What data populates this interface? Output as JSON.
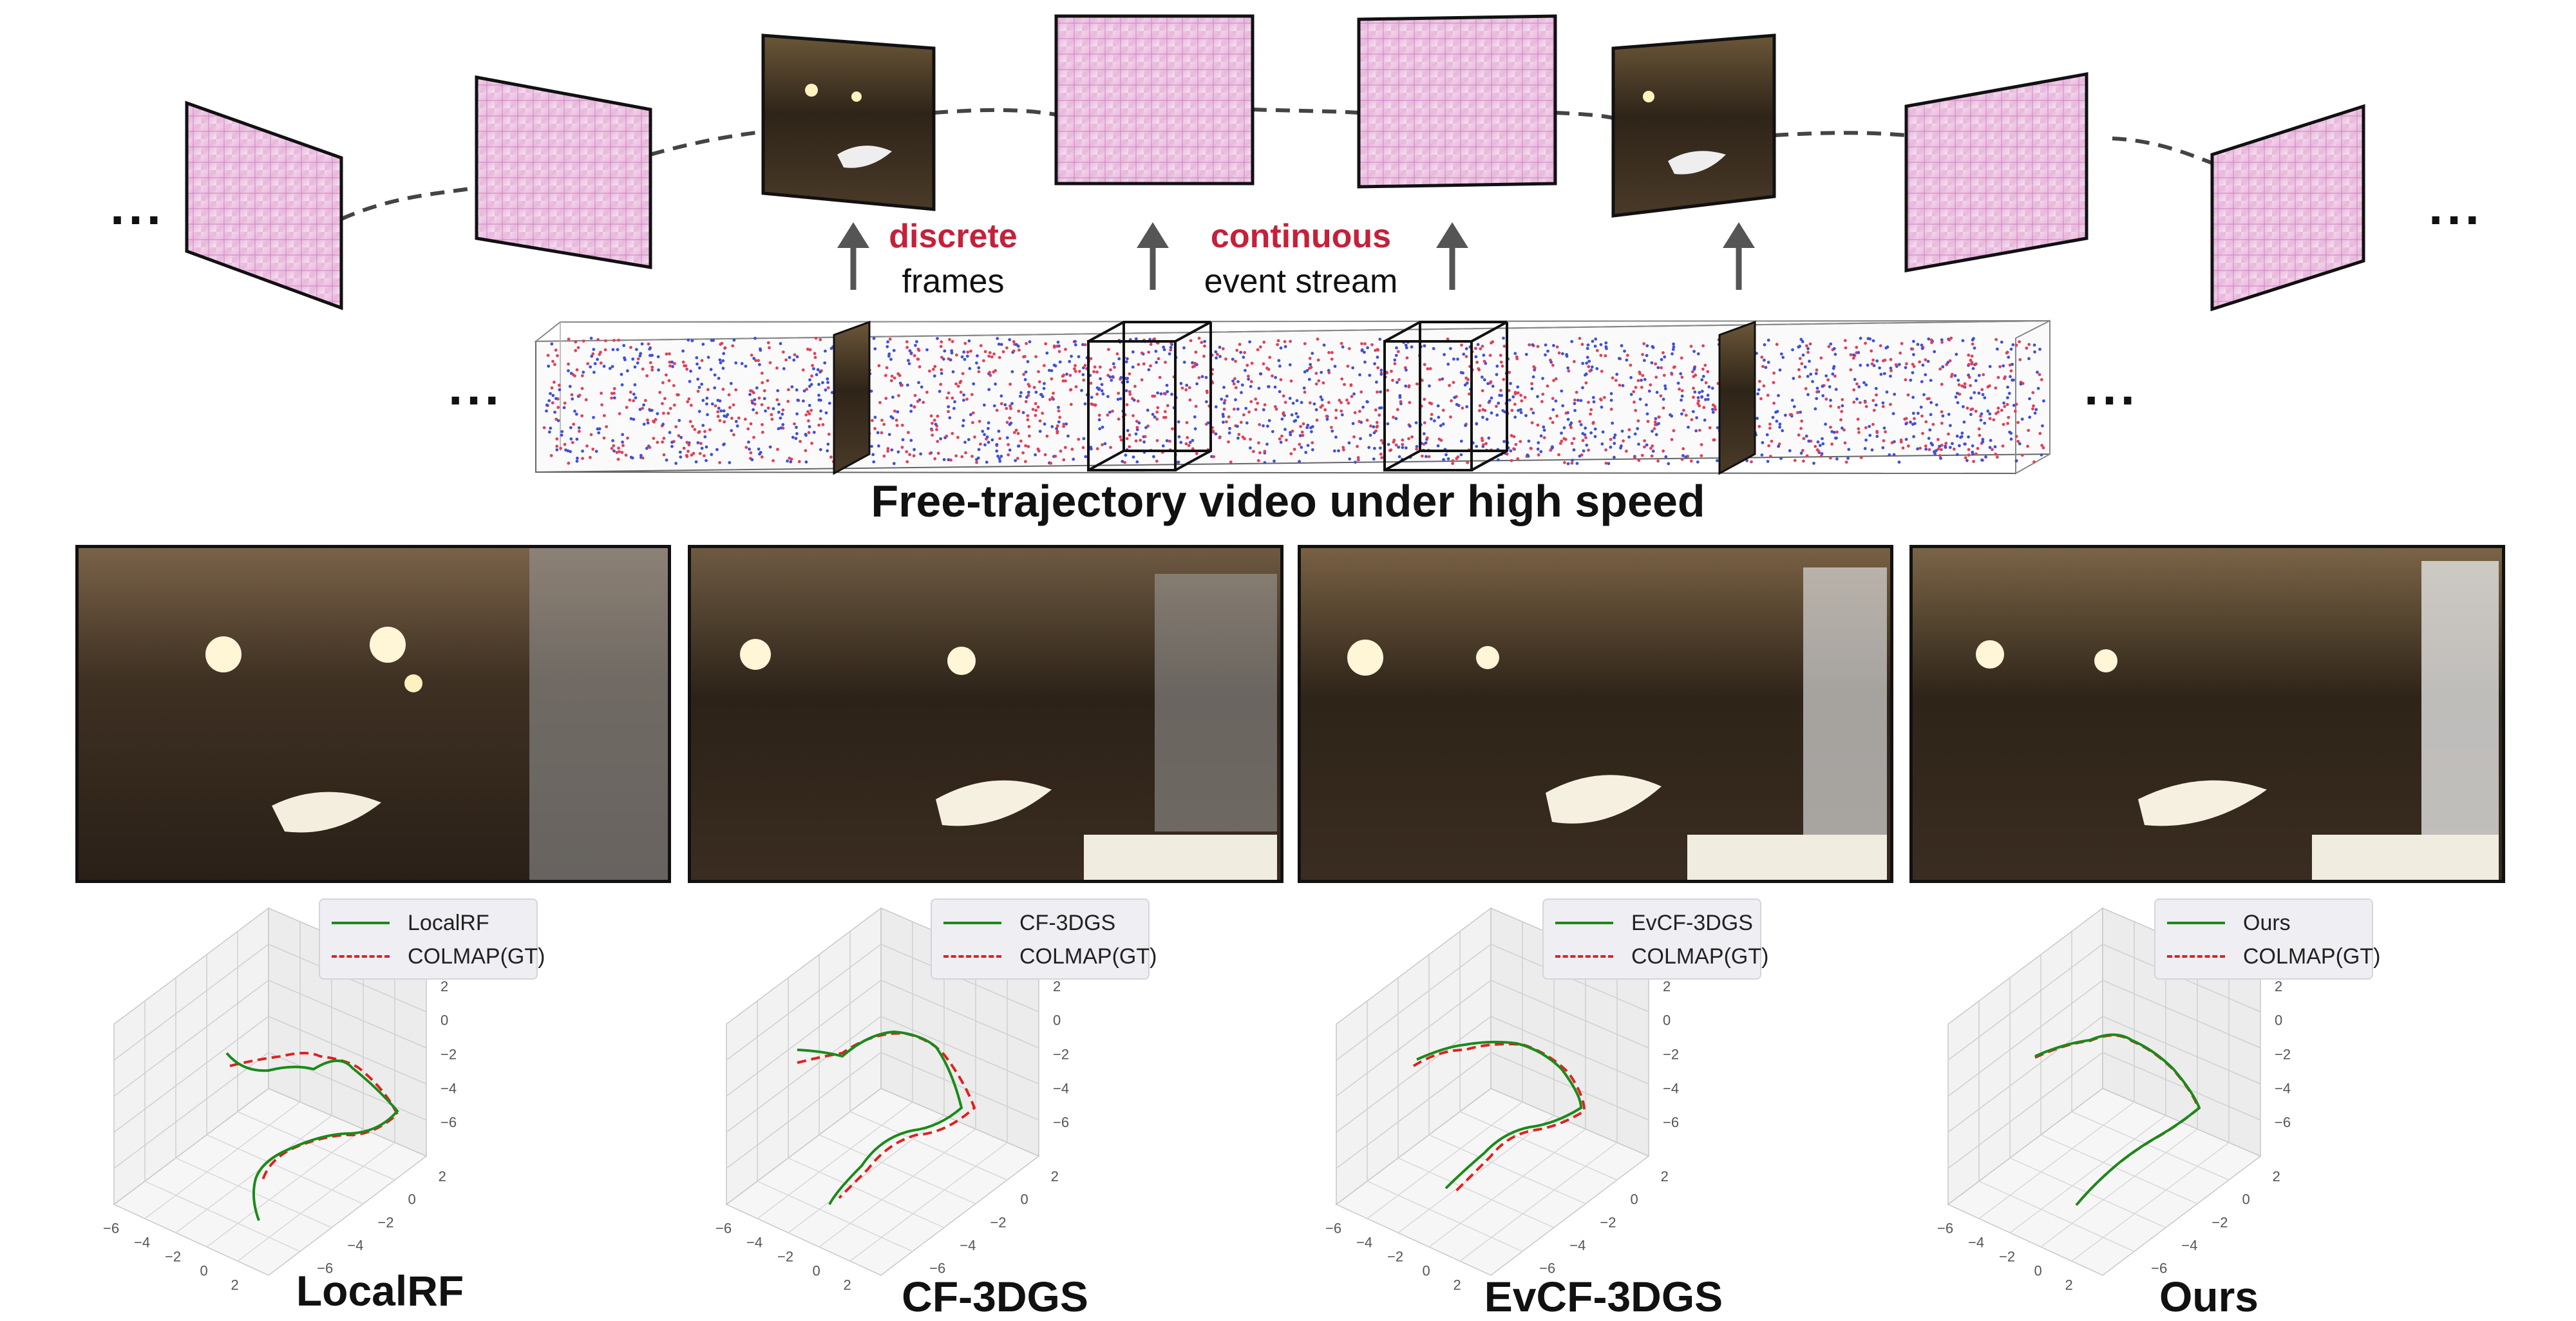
{
  "figure": {
    "top_labels": {
      "discrete": "discrete",
      "frames": "frames",
      "continuous": "continuous",
      "event_stream": "event stream",
      "ellipsis": "..."
    },
    "main_title": "Free-trajectory video under high speed",
    "colors": {
      "accent_red": "#c4213a",
      "method_line": "#1a8a1a",
      "gt_line": "#e02020",
      "event_red": "#e0405a",
      "event_blue": "#4050d8"
    },
    "panels": [
      {
        "name": "LocalRF",
        "legend_method": "LocalRF",
        "legend_gt": "COLMAP(GT)"
      },
      {
        "name": "CF-3DGS",
        "legend_method": "CF-3DGS",
        "legend_gt": "COLMAP(GT)"
      },
      {
        "name": "EvCF-3DGS",
        "legend_method": "EvCF-3DGS",
        "legend_gt": "COLMAP(GT)"
      },
      {
        "name": "Ours",
        "legend_method": "Ours",
        "legend_gt": "COLMAP(GT)"
      }
    ],
    "axes": {
      "z_ticks": [
        "2",
        "0",
        "−2",
        "−4",
        "−6"
      ],
      "x_ticks": [
        "−6",
        "−4",
        "−2",
        "0",
        "2"
      ],
      "y_ticks": [
        "2",
        "0",
        "−2",
        "−4",
        "−6"
      ]
    }
  }
}
